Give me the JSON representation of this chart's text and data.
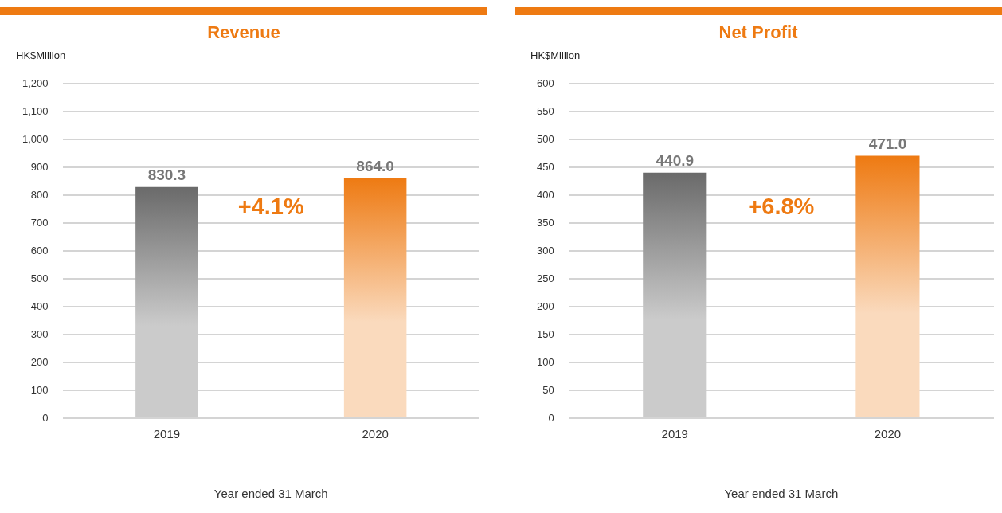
{
  "chart_data": [
    {
      "type": "bar",
      "title": "Revenue",
      "ylabel": "HK$Million",
      "xlabel": "Year ended 31 March",
      "categories": [
        "2019",
        "2020"
      ],
      "values": [
        830.3,
        864.0
      ],
      "colors": [
        "#6a6a6a",
        "#ee7a12"
      ],
      "ylim": [
        0,
        1200
      ],
      "yticks": [
        0,
        100,
        200,
        300,
        400,
        500,
        600,
        700,
        800,
        900,
        {
          "value": 1000,
          "label": "1,000"
        },
        {
          "value": 1100,
          "label": "1,100"
        },
        {
          "value": 1200,
          "label": "1,200"
        }
      ],
      "grid": "y",
      "value_labels": [
        "830.3",
        "864.0"
      ],
      "annotations": [
        "+4.1%"
      ]
    },
    {
      "type": "bar",
      "title": "Net Profit",
      "ylabel": "HK$Million",
      "xlabel": "Year ended 31 March",
      "categories": [
        "2019",
        "2020"
      ],
      "values": [
        440.9,
        471.0
      ],
      "colors": [
        "#6a6a6a",
        "#ee7a12"
      ],
      "ylim": [
        0,
        600
      ],
      "yticks": [
        0,
        50,
        100,
        150,
        200,
        250,
        300,
        350,
        400,
        450,
        500,
        550,
        600
      ],
      "grid": "y",
      "value_labels": [
        "440.9",
        "471.0"
      ],
      "annotations": [
        "+6.8%"
      ]
    }
  ]
}
